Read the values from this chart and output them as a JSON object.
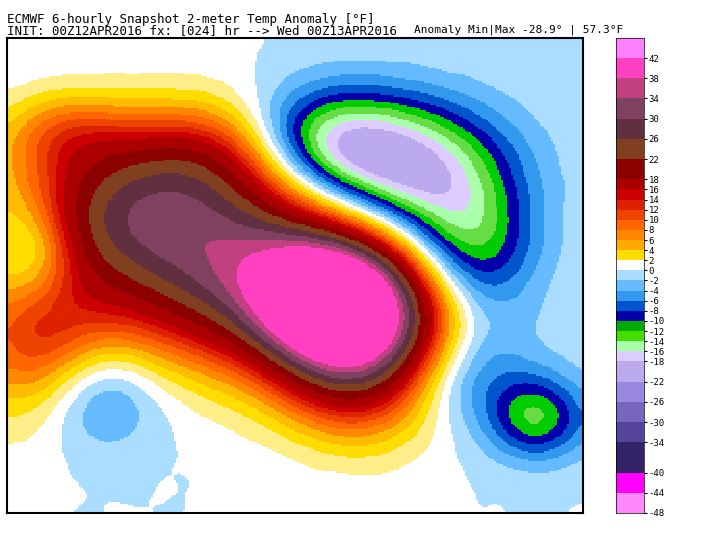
{
  "title_line1": "ECMWF 6-hourly Snapshot 2-meter Temp Anomaly [°F]",
  "title_line2": "INIT: 00Z12APR2016 fx: [024] hr --> Wed 00Z13APR2016",
  "anomaly_info": "Anomaly Min|Max -28.9° | 57.3°F",
  "colorbar_levels": [
    42,
    38,
    34,
    30,
    26,
    22,
    18,
    16,
    14,
    12,
    10,
    8,
    6,
    4,
    2,
    0,
    -2,
    -4,
    -6,
    -8,
    -10,
    -12,
    -14,
    -16,
    -18,
    -22,
    -26,
    -30,
    -34,
    -40,
    -44,
    -48
  ],
  "colorbar_tick_labels": [
    "42",
    "38",
    "34",
    "30",
    "26",
    "22",
    "18",
    "16",
    "14",
    "12",
    "10",
    "8",
    "6",
    "4",
    "2",
    "0",
    "-2",
    "-4",
    "-6",
    "-8",
    "-10",
    "-12",
    "-14",
    "-16",
    "-18",
    "-22",
    "-26",
    "-30",
    "-34",
    "-40",
    "-44",
    "-48"
  ],
  "colorbar_colors": [
    "#FF80FF",
    "#FF40C0",
    "#C04080",
    "#804060",
    "#603040",
    "#804020",
    "#8B0000",
    "#AA0000",
    "#CC0000",
    "#DD2200",
    "#EE4400",
    "#FF6600",
    "#FF8800",
    "#FFAA00",
    "#FFDD00",
    "#FFFFFF",
    "#AADDFF",
    "#66BBFF",
    "#3399EE",
    "#0055CC",
    "#0000AA",
    "#00AA00",
    "#44DD00",
    "#AAFFAA",
    "#DDCCFF",
    "#BBAAEE",
    "#9988DD",
    "#7766BB",
    "#554499",
    "#332266",
    "#FF00FF",
    "#FF88FF"
  ],
  "bg_color": "#ffffff",
  "map_bg": "#c8e8ff",
  "title_fontsize": 9,
  "anomaly_fontsize": 8
}
